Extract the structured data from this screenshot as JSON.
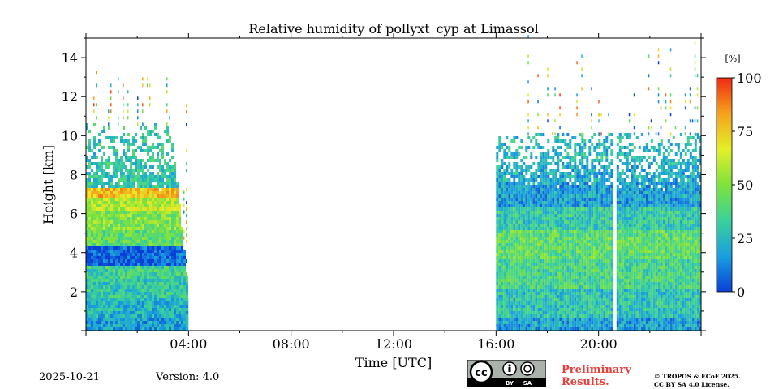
{
  "chart_data": {
    "type": "heatmap",
    "title": "Relative humidity of pollyxt_cyp at Limassol",
    "xlabel": "Time [UTC]",
    "ylabel": "Height [km]",
    "xlim_hours": [
      0,
      24
    ],
    "ylim_km": [
      0,
      15
    ],
    "xticks": [
      {
        "hour": 4,
        "label": "04:00"
      },
      {
        "hour": 8,
        "label": "08:00"
      },
      {
        "hour": 12,
        "label": "12:00"
      },
      {
        "hour": 16,
        "label": "16:00"
      },
      {
        "hour": 20,
        "label": "20:00"
      }
    ],
    "yticks": [
      {
        "km": 2,
        "label": "2"
      },
      {
        "km": 4,
        "label": "4"
      },
      {
        "km": 6,
        "label": "6"
      },
      {
        "km": 8,
        "label": "8"
      },
      {
        "km": 10,
        "label": "10"
      },
      {
        "km": 12,
        "label": "12"
      },
      {
        "km": 14,
        "label": "14"
      }
    ],
    "colorbar": {
      "unit": "[%]",
      "range": [
        0,
        100
      ],
      "ticks": [
        {
          "value": 0,
          "label": "0"
        },
        {
          "value": 25,
          "label": "25"
        },
        {
          "value": 50,
          "label": "50"
        },
        {
          "value": 75,
          "label": "75"
        },
        {
          "value": 100,
          "label": "100"
        }
      ],
      "colors": [
        "#0a3fd6",
        "#1a9fe0",
        "#3ad19a",
        "#7ee23c",
        "#e4ef28",
        "#f5a21c",
        "#f02a14"
      ]
    },
    "data_segments": [
      {
        "start_hour": 0.0,
        "end_hour": 4.0
      },
      {
        "start_hour": 16.0,
        "end_hour": 20.55
      },
      {
        "start_hour": 20.7,
        "end_hour": 24.0
      }
    ],
    "humidity_profile_morning": [
      {
        "top_km": 0.5,
        "rh": 18
      },
      {
        "top_km": 1.5,
        "rh": 24
      },
      {
        "top_km": 2.5,
        "rh": 30
      },
      {
        "top_km": 3.2,
        "rh": 34
      },
      {
        "top_km": 4.2,
        "rh": 6
      },
      {
        "top_km": 5.0,
        "rh": 42
      },
      {
        "top_km": 6.0,
        "rh": 50
      },
      {
        "top_km": 6.8,
        "rh": 58
      },
      {
        "top_km": 7.3,
        "rh": 76
      },
      {
        "top_km": 8.3,
        "rh": 30
      },
      {
        "top_km": 10.5,
        "rh": 30
      }
    ],
    "humidity_profile_evening": [
      {
        "top_km": 0.6,
        "rh": 18
      },
      {
        "top_km": 2.0,
        "rh": 28
      },
      {
        "top_km": 3.5,
        "rh": 36
      },
      {
        "top_km": 5.0,
        "rh": 42
      },
      {
        "top_km": 6.2,
        "rh": 30
      },
      {
        "top_km": 7.5,
        "rh": 18
      },
      {
        "top_km": 8.6,
        "rh": 22
      },
      {
        "top_km": 10.0,
        "rh": 26
      }
    ]
  },
  "footer": {
    "date": "2025-10-21",
    "version": "Version: 4.0",
    "preliminary_line1": "Preliminary",
    "preliminary_line2": "Results.",
    "credit_line1": "© TROPOS & ECoE 2025.",
    "credit_line2": "CC BY SA 4.0 License.",
    "license_badge": {
      "cc": "cc",
      "by": "BY",
      "sa": "SA"
    }
  }
}
